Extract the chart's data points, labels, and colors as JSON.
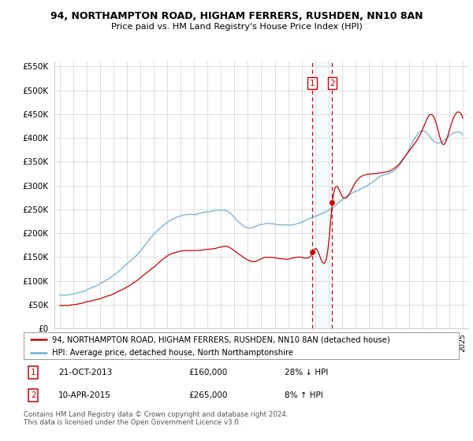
{
  "title": "94, NORTHAMPTON ROAD, HIGHAM FERRERS, RUSHDEN, NN10 8AN",
  "subtitle": "Price paid vs. HM Land Registry's House Price Index (HPI)",
  "legend_line1": "94, NORTHAMPTON ROAD, HIGHAM FERRERS, RUSHDEN, NN10 8AN (detached house)",
  "legend_line2": "HPI: Average price, detached house, North Northamptonshire",
  "footnote": "Contains HM Land Registry data © Crown copyright and database right 2024.\nThis data is licensed under the Open Government Licence v3.0.",
  "sale1_label": "1",
  "sale1_date": "21-OCT-2013",
  "sale1_year": 2013.8,
  "sale1_price": 160000,
  "sale1_pct": "28% ↓ HPI",
  "sale2_label": "2",
  "sale2_date": "10-APR-2015",
  "sale2_year": 2015.28,
  "sale2_price": 265000,
  "sale2_pct": "8% ↑ HPI",
  "hpi_color": "#6baed6",
  "sale_color": "#cc0000",
  "ylim": [
    0,
    560000
  ],
  "yticks": [
    0,
    50000,
    100000,
    150000,
    200000,
    250000,
    300000,
    350000,
    400000,
    450000,
    500000,
    550000
  ],
  "ytick_labels": [
    "£0",
    "£50K",
    "£100K",
    "£150K",
    "£200K",
    "£250K",
    "£300K",
    "£350K",
    "£400K",
    "£450K",
    "£500K",
    "£550K"
  ],
  "bg_color": "#ffffff",
  "grid_color": "#d8d8d8",
  "box_shade_color": "#d0e4f7"
}
